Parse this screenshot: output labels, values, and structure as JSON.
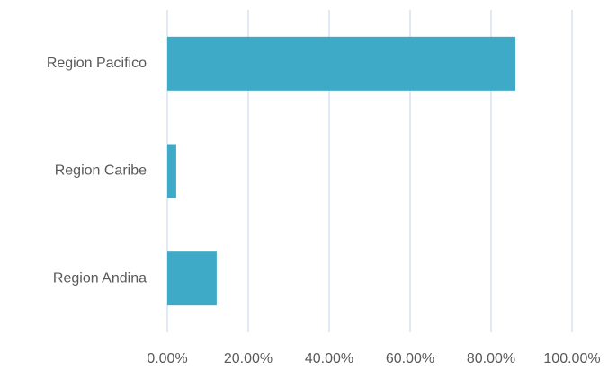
{
  "chart_data": {
    "type": "bar",
    "orientation": "horizontal",
    "categories": [
      "Region Pacifico",
      "Region Caribe",
      "Region Andina"
    ],
    "values": [
      86,
      2.2,
      12.2
    ],
    "color": "#3eaac8",
    "xlim": [
      0,
      100
    ],
    "xticks": [
      {
        "value": 0,
        "label": "0.00%"
      },
      {
        "value": 20,
        "label": "20.00%"
      },
      {
        "value": 40,
        "label": "40.00%"
      },
      {
        "value": 60,
        "label": "60.00%"
      },
      {
        "value": 80,
        "label": "80.00%"
      },
      {
        "value": 100,
        "label": "100.00%"
      }
    ],
    "grid": true
  }
}
